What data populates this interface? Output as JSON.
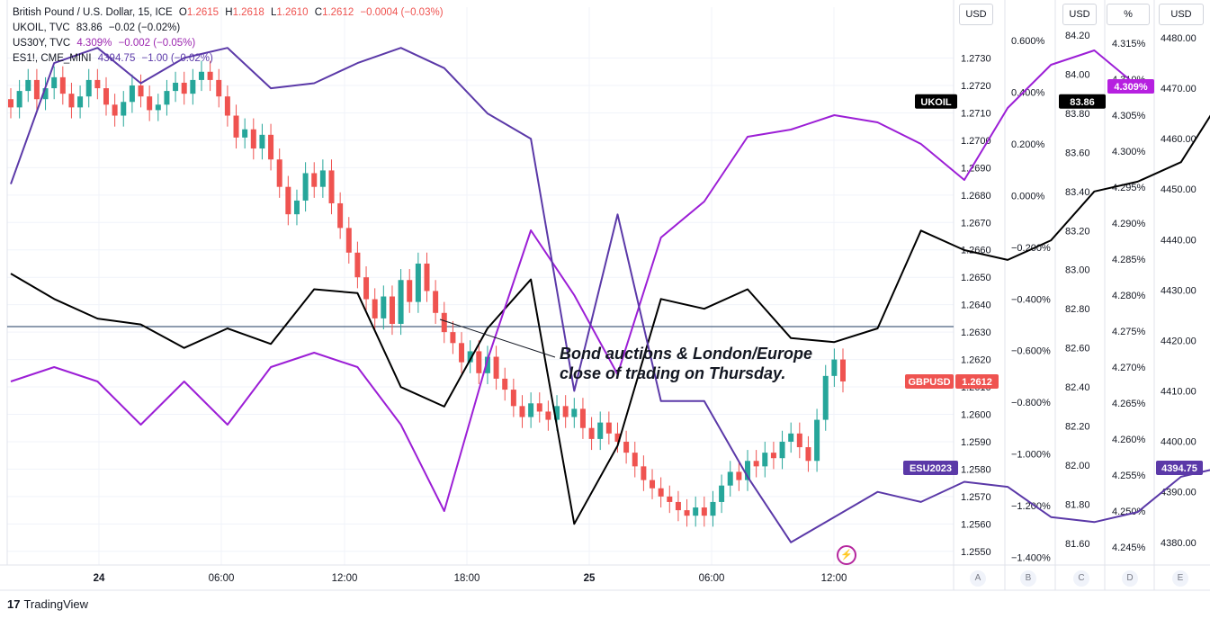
{
  "legend": {
    "gbpusd": {
      "name": "British Pound / U.S. Dollar, 15, ICE",
      "o_label": "O",
      "o": "1.2615",
      "h_label": "H",
      "h": "1.2618",
      "l_label": "L",
      "l": "1.2610",
      "c_label": "C",
      "c": "1.2612",
      "chg": "−0.0004 (−0.03%)"
    },
    "ukoil": {
      "name": "UKOIL, TVC",
      "value": "83.86",
      "chg": "−0.02 (−0.02%)"
    },
    "us30y": {
      "name": "US30Y, TVC",
      "value": "4.309%",
      "chg": "−0.002 (−0.05%)"
    },
    "es": {
      "name": "ES1!, CME_MINI",
      "value": "4394.75",
      "chg": "−1.00 (−0.02%)"
    }
  },
  "scale_buttons": [
    "USD",
    "USD",
    "%",
    "USD"
  ],
  "scale_letters": [
    "A",
    "B",
    "C",
    "D",
    "E"
  ],
  "annotation": {
    "line1": "Bond auctions & London/Europe",
    "line2": "close of trading on Thursday."
  },
  "branding": "TradingView",
  "colors": {
    "up": "#26a69a",
    "down": "#ef5350",
    "ukoil": "#000000",
    "us30y": "#9c1fd6",
    "es": "#5b39a8",
    "grid": "#f0f3fa",
    "axis_line": "#e0e3eb",
    "hline": "#1e3a5f"
  },
  "chart_data": {
    "type": "line",
    "x_ticks": [
      "24",
      "06:00",
      "12:00",
      "18:00",
      "25",
      "06:00",
      "12:00"
    ],
    "axes": {
      "A": {
        "unit": "USD",
        "ticks": [
          "1.2550",
          "1.2560",
          "1.2570",
          "1.2580",
          "1.2590",
          "1.2600",
          "1.2610",
          "1.2620",
          "1.2630",
          "1.2640",
          "1.2650",
          "1.2660",
          "1.2670",
          "1.2680",
          "1.2690",
          "1.2700",
          "1.2710",
          "1.2720",
          "1.2730"
        ],
        "range": [
          1.2545,
          1.2742
        ]
      },
      "B": {
        "unit": "%",
        "ticks": [
          "−1.400%",
          "−1.200%",
          "−1.000%",
          "−0.800%",
          "−0.600%",
          "−0.400%",
          "−0.200%",
          "0.000%",
          "0.200%",
          "0.400%",
          "0.600%"
        ],
        "range": [
          -1.43,
          0.66
        ]
      },
      "C": {
        "unit": "USD",
        "ticks": [
          "81.60",
          "81.80",
          "82.00",
          "82.20",
          "82.40",
          "82.60",
          "82.80",
          "83.00",
          "83.20",
          "83.40",
          "83.60",
          "83.80",
          "84.00",
          "84.20"
        ],
        "range": [
          81.49,
          84.25
        ]
      },
      "D": {
        "unit": "%",
        "ticks": [
          "4.245%",
          "4.250%",
          "4.255%",
          "4.260%",
          "4.265%",
          "4.270%",
          "4.275%",
          "4.280%",
          "4.285%",
          "4.290%",
          "4.295%",
          "4.300%",
          "4.305%",
          "4.310%",
          "4.315%"
        ],
        "range": [
          4.2425,
          4.3175
        ]
      },
      "E": {
        "unit": "USD",
        "ticks": [
          "4380.00",
          "4390.00",
          "4400.00",
          "4410.00",
          "4420.00",
          "4430.00",
          "4440.00",
          "4450.00",
          "4460.00",
          "4470.00",
          "4480.00"
        ],
        "range": [
          4375.5,
          4482.5
        ]
      }
    },
    "current_labels": [
      {
        "name": "UKOIL",
        "value": "83.86",
        "axis": "C"
      },
      {
        "name": "US30Y",
        "value": "4.309%",
        "axis": "D"
      },
      {
        "name": "GBPUSD",
        "value": "1.2612",
        "axis": "A"
      },
      {
        "name": "ESU2023",
        "value": "4394.75",
        "axis": "E"
      }
    ],
    "horizontal_line": {
      "axis": "A",
      "value": 1.2632
    },
    "series": [
      {
        "name": "GBPUSD",
        "type": "candlestick",
        "axis": "A",
        "closes": [
          1.2712,
          1.2718,
          1.2722,
          1.2715,
          1.2719,
          1.2723,
          1.2717,
          1.2712,
          1.2716,
          1.2722,
          1.2719,
          1.2713,
          1.2709,
          1.2714,
          1.272,
          1.2716,
          1.2711,
          1.2713,
          1.2718,
          1.2721,
          1.2717,
          1.2722,
          1.2725,
          1.2722,
          1.2716,
          1.2709,
          1.2701,
          1.2704,
          1.2697,
          1.2702,
          1.2693,
          1.2683,
          1.2673,
          1.2678,
          1.2688,
          1.2683,
          1.2689,
          1.2677,
          1.2668,
          1.2659,
          1.265,
          1.2642,
          1.2635,
          1.2643,
          1.2633,
          1.2649,
          1.2641,
          1.2655,
          1.2645,
          1.2637,
          1.263,
          1.2626,
          1.2619,
          1.2623,
          1.2615,
          1.2621,
          1.2613,
          1.2609,
          1.2603,
          1.2599,
          1.2604,
          1.2601,
          1.2598,
          1.2603,
          1.2599,
          1.2602,
          1.2595,
          1.2591,
          1.2597,
          1.2593,
          1.259,
          1.2586,
          1.2581,
          1.2576,
          1.2573,
          1.257,
          1.2568,
          1.2565,
          1.2563,
          1.2566,
          1.2563,
          1.2568,
          1.2574,
          1.2579,
          1.2576,
          1.2583,
          1.2581,
          1.2586,
          1.2584,
          1.259,
          1.2593,
          1.2588,
          1.2583,
          1.2598,
          1.2614,
          1.262,
          1.2612
        ]
      },
      {
        "name": "UKOIL",
        "axis": "C",
        "points": [
          [
            0,
            82.98
          ],
          [
            5,
            82.85
          ],
          [
            10,
            82.75
          ],
          [
            15,
            82.72
          ],
          [
            20,
            82.6
          ],
          [
            25,
            82.7
          ],
          [
            30,
            82.62
          ],
          [
            35,
            82.9
          ],
          [
            40,
            82.88
          ],
          [
            45,
            82.4
          ],
          [
            50,
            82.3
          ],
          [
            55,
            82.7
          ],
          [
            60,
            82.95
          ],
          [
            65,
            81.7
          ],
          [
            70,
            82.1
          ],
          [
            75,
            82.85
          ],
          [
            80,
            82.8
          ],
          [
            85,
            82.9
          ],
          [
            90,
            82.65
          ],
          [
            95,
            82.63
          ],
          [
            100,
            82.7
          ],
          [
            105,
            83.2
          ],
          [
            110,
            83.1
          ],
          [
            115,
            83.05
          ],
          [
            120,
            83.15
          ],
          [
            125,
            83.4
          ],
          [
            130,
            83.45
          ],
          [
            135,
            83.55
          ],
          [
            140,
            83.9
          ],
          [
            145,
            84.1
          ],
          [
            150,
            83.9
          ],
          [
            155,
            83.8
          ],
          [
            160,
            83.86
          ]
        ]
      },
      {
        "name": "US30Y",
        "axis": "D",
        "points": [
          [
            0,
            4.268
          ],
          [
            5,
            4.27
          ],
          [
            10,
            4.268
          ],
          [
            15,
            4.262
          ],
          [
            20,
            4.268
          ],
          [
            25,
            4.262
          ],
          [
            30,
            4.27
          ],
          [
            35,
            4.272
          ],
          [
            40,
            4.27
          ],
          [
            45,
            4.262
          ],
          [
            50,
            4.25
          ],
          [
            55,
            4.271
          ],
          [
            60,
            4.289
          ],
          [
            65,
            4.28
          ],
          [
            70,
            4.269
          ],
          [
            75,
            4.288
          ],
          [
            80,
            4.293
          ],
          [
            85,
            4.302
          ],
          [
            90,
            4.303
          ],
          [
            95,
            4.305
          ],
          [
            100,
            4.304
          ],
          [
            105,
            4.301
          ],
          [
            110,
            4.296
          ],
          [
            115,
            4.306
          ],
          [
            120,
            4.312
          ],
          [
            125,
            4.314
          ],
          [
            130,
            4.309
          ]
        ]
      },
      {
        "name": "ESU2023",
        "axis": "E",
        "points": [
          [
            0,
            4451
          ],
          [
            5,
            4475
          ],
          [
            10,
            4478
          ],
          [
            15,
            4471
          ],
          [
            20,
            4476
          ],
          [
            25,
            4478
          ],
          [
            30,
            4470
          ],
          [
            35,
            4471
          ],
          [
            40,
            4475
          ],
          [
            45,
            4478
          ],
          [
            50,
            4474
          ],
          [
            55,
            4465
          ],
          [
            60,
            4460
          ],
          [
            65,
            4410
          ],
          [
            70,
            4445
          ],
          [
            75,
            4408
          ],
          [
            80,
            4408
          ],
          [
            85,
            4393
          ],
          [
            90,
            4380
          ],
          [
            95,
            4385
          ],
          [
            100,
            4390
          ],
          [
            105,
            4388
          ],
          [
            110,
            4392
          ],
          [
            115,
            4391
          ],
          [
            120,
            4385
          ],
          [
            125,
            4384
          ],
          [
            130,
            4386
          ],
          [
            135,
            4393
          ],
          [
            140,
            4395
          ],
          [
            145,
            4396
          ],
          [
            150,
            4395
          ],
          [
            155,
            4394.75
          ]
        ]
      }
    ]
  }
}
